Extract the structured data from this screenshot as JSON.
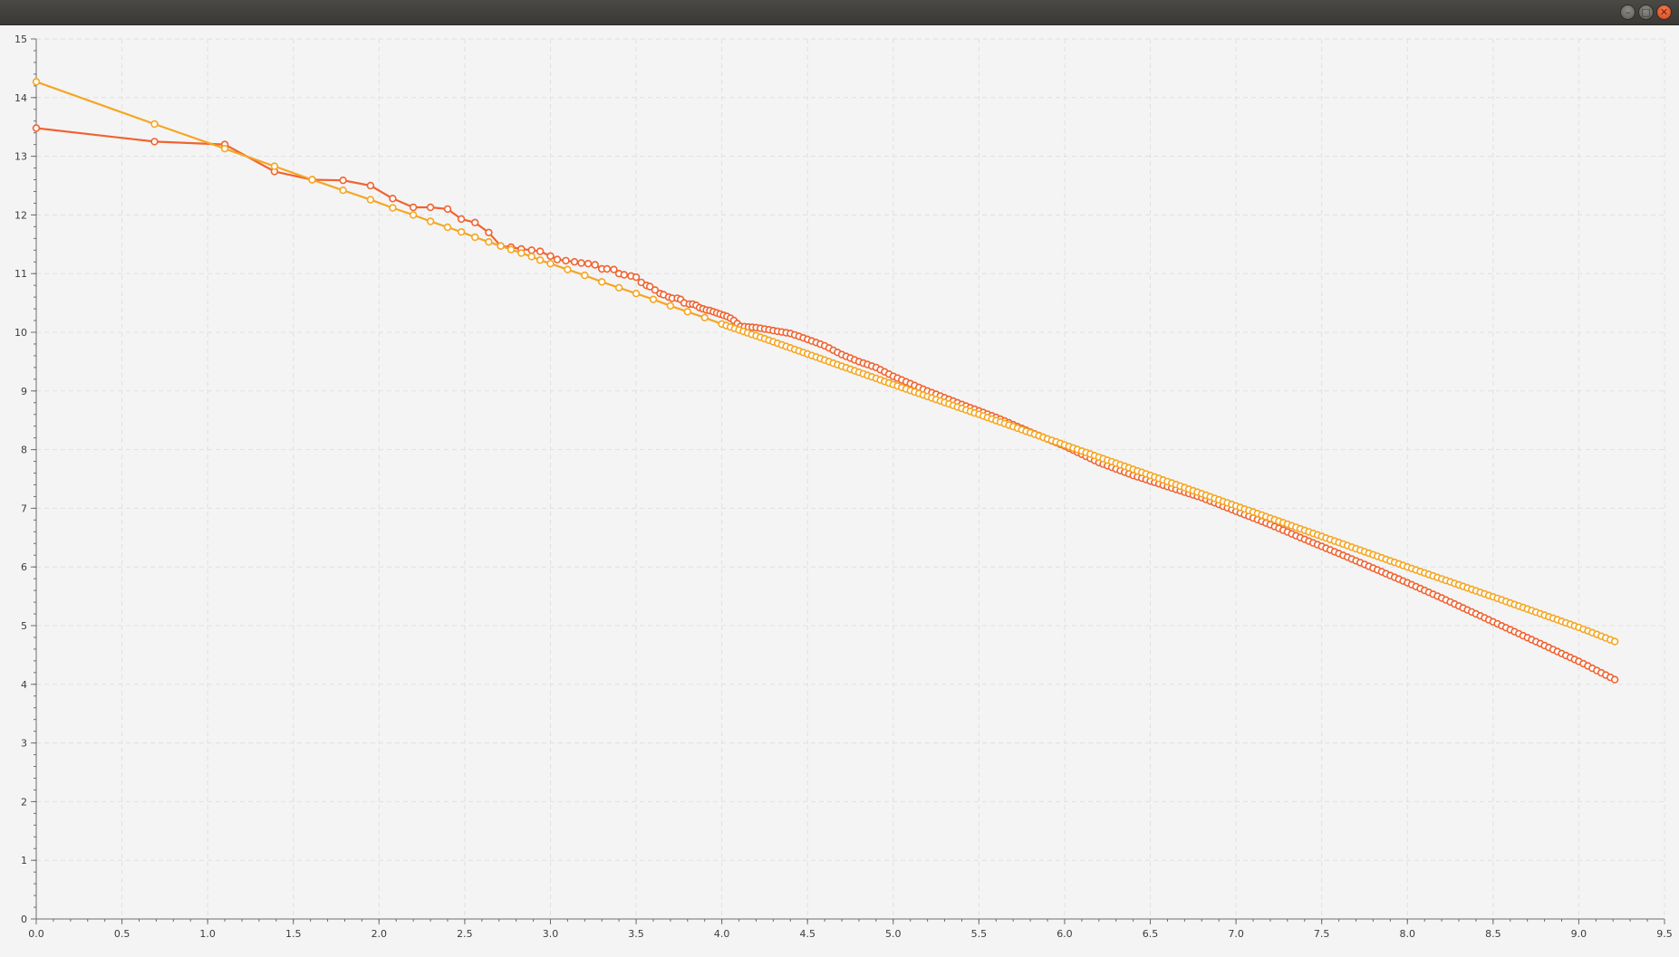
{
  "window": {
    "controls": [
      {
        "name": "minimize",
        "glyph": "–"
      },
      {
        "name": "maximize",
        "glyph": "□"
      },
      {
        "name": "close",
        "glyph": "✕"
      }
    ]
  },
  "chart_data": {
    "type": "line",
    "title": "",
    "xlabel": "",
    "ylabel": "",
    "xlim": [
      0,
      9.5
    ],
    "ylim": [
      0,
      15
    ],
    "x_ticks": [
      0,
      0.5,
      1,
      1.5,
      2,
      2.5,
      3,
      3.5,
      4,
      4.5,
      5,
      5.5,
      6,
      6.5,
      7,
      7.5,
      8,
      8.5,
      9,
      9.5
    ],
    "y_ticks": [
      0,
      1,
      2,
      3,
      4,
      5,
      6,
      7,
      8,
      9,
      10,
      11,
      12,
      13,
      14,
      15
    ],
    "grid": true,
    "legend": "none",
    "colors": {
      "background": "#f4f4f4",
      "grid": "#e0e0e0",
      "axis": "#6e6e6e",
      "series_red": "#f06331",
      "series_orange": "#f5a623"
    },
    "series": [
      {
        "color": "#f06331",
        "marker": "open-circle",
        "points": [
          [
            0.0,
            13.48
          ],
          [
            0.69,
            13.25
          ],
          [
            1.1,
            13.2
          ],
          [
            1.39,
            12.74
          ],
          [
            1.61,
            12.6
          ],
          [
            1.79,
            12.59
          ],
          [
            1.95,
            12.5
          ],
          [
            2.08,
            12.28
          ],
          [
            2.2,
            12.13
          ],
          [
            2.3,
            12.13
          ],
          [
            2.4,
            12.1
          ],
          [
            2.48,
            11.93
          ],
          [
            2.56,
            11.87
          ],
          [
            2.64,
            11.7
          ],
          [
            2.71,
            11.47
          ],
          [
            2.77,
            11.45
          ],
          [
            2.83,
            11.42
          ],
          [
            2.89,
            11.4
          ],
          [
            2.94,
            11.38
          ],
          [
            3.0,
            11.3
          ],
          [
            3.04,
            11.24
          ],
          [
            3.09,
            11.22
          ],
          [
            3.14,
            11.2
          ],
          [
            3.18,
            11.18
          ],
          [
            3.22,
            11.17
          ],
          [
            3.26,
            11.15
          ],
          [
            3.3,
            11.08
          ],
          [
            3.33,
            11.08
          ],
          [
            3.37,
            11.07
          ],
          [
            3.4,
            11.0
          ],
          [
            3.43,
            10.98
          ],
          [
            3.47,
            10.96
          ],
          [
            3.5,
            10.94
          ],
          [
            3.53,
            10.85
          ],
          [
            3.56,
            10.8
          ],
          [
            3.58,
            10.78
          ],
          [
            3.61,
            10.72
          ],
          [
            3.64,
            10.66
          ],
          [
            3.66,
            10.64
          ],
          [
            3.69,
            10.6
          ],
          [
            3.71,
            10.58
          ],
          [
            3.74,
            10.58
          ],
          [
            3.76,
            10.56
          ],
          [
            3.78,
            10.5
          ],
          [
            3.81,
            10.48
          ],
          [
            3.83,
            10.48
          ],
          [
            3.85,
            10.46
          ],
          [
            3.87,
            10.42
          ],
          [
            3.89,
            10.4
          ],
          [
            3.91,
            10.38
          ],
          [
            3.93,
            10.37
          ],
          [
            3.95,
            10.35
          ],
          [
            3.97,
            10.33
          ],
          [
            3.99,
            10.31
          ],
          [
            4.01,
            10.29
          ],
          [
            4.03,
            10.27
          ],
          [
            4.05,
            10.24
          ],
          [
            4.07,
            10.2
          ],
          [
            4.09,
            10.15
          ],
          [
            4.11,
            10.1
          ],
          [
            4.2,
            10.08
          ],
          [
            4.3,
            10.03
          ],
          [
            4.4,
            9.98
          ],
          [
            4.5,
            9.88
          ],
          [
            4.6,
            9.77
          ],
          [
            4.7,
            9.62
          ],
          [
            4.8,
            9.5
          ],
          [
            4.9,
            9.4
          ],
          [
            5.0,
            9.25
          ],
          [
            5.2,
            9.0
          ],
          [
            5.4,
            8.77
          ],
          [
            5.6,
            8.55
          ],
          [
            5.8,
            8.3
          ],
          [
            6.0,
            8.06
          ],
          [
            6.2,
            7.78
          ],
          [
            6.4,
            7.56
          ],
          [
            6.6,
            7.37
          ],
          [
            6.8,
            7.18
          ],
          [
            7.0,
            6.95
          ],
          [
            7.2,
            6.72
          ],
          [
            7.4,
            6.47
          ],
          [
            7.6,
            6.23
          ],
          [
            7.8,
            5.98
          ],
          [
            8.0,
            5.73
          ],
          [
            8.2,
            5.47
          ],
          [
            8.4,
            5.2
          ],
          [
            8.6,
            4.93
          ],
          [
            8.8,
            4.66
          ],
          [
            9.0,
            4.39
          ],
          [
            9.21,
            4.08
          ]
        ]
      },
      {
        "color": "#f5a623",
        "marker": "open-circle",
        "points": [
          [
            0.0,
            14.27
          ],
          [
            0.69,
            13.55
          ],
          [
            1.1,
            13.13
          ],
          [
            1.39,
            12.83
          ],
          [
            1.61,
            12.6
          ],
          [
            1.79,
            12.42
          ],
          [
            1.95,
            12.26
          ],
          [
            2.08,
            12.12
          ],
          [
            2.2,
            12.0
          ],
          [
            2.3,
            11.89
          ],
          [
            2.4,
            11.79
          ],
          [
            2.48,
            11.71
          ],
          [
            2.56,
            11.62
          ],
          [
            2.64,
            11.54
          ],
          [
            2.71,
            11.47
          ],
          [
            2.77,
            11.41
          ],
          [
            2.83,
            11.35
          ],
          [
            2.89,
            11.29
          ],
          [
            2.94,
            11.23
          ],
          [
            3.0,
            11.17
          ],
          [
            3.1,
            11.07
          ],
          [
            3.2,
            10.97
          ],
          [
            3.3,
            10.86
          ],
          [
            3.4,
            10.76
          ],
          [
            3.5,
            10.66
          ],
          [
            3.6,
            10.56
          ],
          [
            3.7,
            10.45
          ],
          [
            3.8,
            10.35
          ],
          [
            3.9,
            10.25
          ],
          [
            4.0,
            10.14
          ],
          [
            4.25,
            9.89
          ],
          [
            4.5,
            9.63
          ],
          [
            4.75,
            9.37
          ],
          [
            5.0,
            9.11
          ],
          [
            5.5,
            8.6
          ],
          [
            6.0,
            8.08
          ],
          [
            6.5,
            7.56
          ],
          [
            7.0,
            7.04
          ],
          [
            7.5,
            6.52
          ],
          [
            8.0,
            6.0
          ],
          [
            8.5,
            5.49
          ],
          [
            9.0,
            4.97
          ],
          [
            9.21,
            4.73
          ]
        ]
      }
    ]
  }
}
